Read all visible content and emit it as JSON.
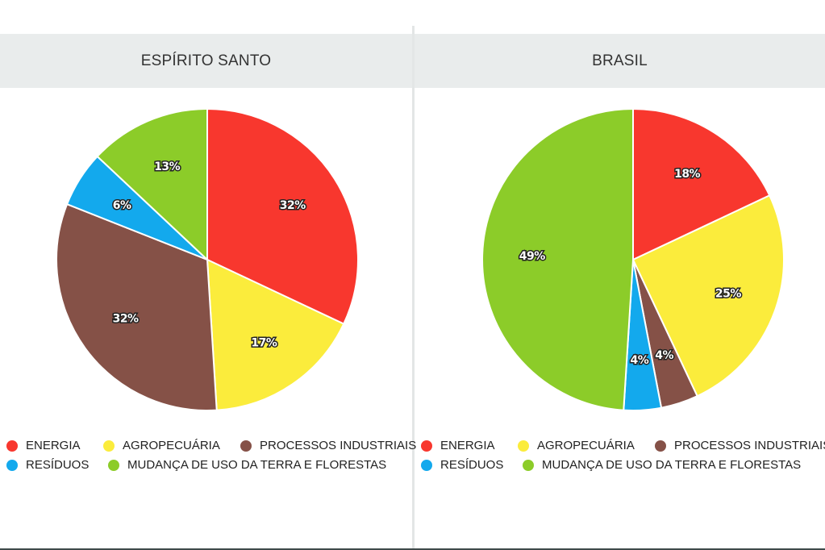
{
  "legend": [
    {
      "label": "ENERGIA",
      "color": "#f8372e"
    },
    {
      "label": "AGROPECUÁRIA",
      "color": "#fbec3c"
    },
    {
      "label": "PROCESSOS INDUSTRIAIS",
      "color": "#855147"
    },
    {
      "label": "RESÍDUOS",
      "color": "#13a9ed"
    },
    {
      "label": "MUDANÇA DE USO DA TERRA E FLORESTAS",
      "color": "#8ccc29"
    }
  ],
  "chart_data": [
    {
      "type": "pie",
      "title": "ESPÍRITO SANTO",
      "start_angle_deg": 0,
      "slices": [
        {
          "name": "ENERGIA",
          "value": 32,
          "label": "32%",
          "color": "#f8372e"
        },
        {
          "name": "AGROPECUÁRIA",
          "value": 17,
          "label": "17%",
          "color": "#fbec3c"
        },
        {
          "name": "PROCESSOS INDUSTRIAIS",
          "value": 32,
          "label": "32%",
          "color": "#855147"
        },
        {
          "name": "RESÍDUOS",
          "value": 6,
          "label": "6%",
          "color": "#13a9ed"
        },
        {
          "name": "MUDANÇA DE USO DA TERRA E FLORESTAS",
          "value": 13,
          "label": "13%",
          "color": "#8ccc29"
        }
      ],
      "legend_position": "bottom"
    },
    {
      "type": "pie",
      "title": "BRASIL",
      "start_angle_deg": 0,
      "slices": [
        {
          "name": "ENERGIA",
          "value": 18,
          "label": "18%",
          "color": "#f8372e"
        },
        {
          "name": "AGROPECUÁRIA",
          "value": 25,
          "label": "25%",
          "color": "#fbec3c"
        },
        {
          "name": "PROCESSOS INDUSTRIAIS",
          "value": 4,
          "label": "4%",
          "color": "#855147"
        },
        {
          "name": "RESÍDUOS",
          "value": 4,
          "label": "4%",
          "color": "#13a9ed"
        },
        {
          "name": "MUDANÇA DE USO DA TERRA E FLORESTAS",
          "value": 49,
          "label": "49%",
          "color": "#8ccc29"
        }
      ],
      "legend_position": "bottom"
    }
  ]
}
